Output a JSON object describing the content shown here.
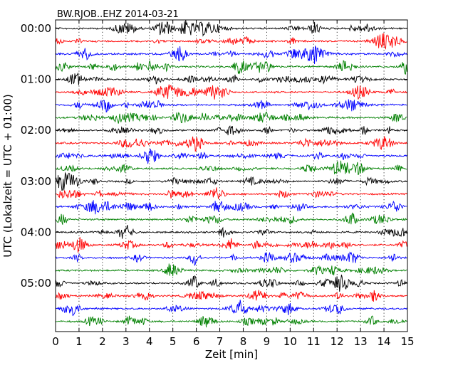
{
  "chart_data": {
    "type": "line",
    "title": "BW.RJOB..EHZ 2014-03-21",
    "xlabel": "Zeit  [min]",
    "ylabel": "UTC (Lokalzeit = UTC + 01:00)",
    "xlim": [
      0,
      15
    ],
    "x_ticks": [
      "0",
      "1",
      "2",
      "3",
      "4",
      "5",
      "6",
      "7",
      "8",
      "9",
      "10",
      "11",
      "12",
      "13",
      "14",
      "15"
    ],
    "y_ticks": [
      "00:00",
      "01:00",
      "02:00",
      "03:00",
      "04:00",
      "05:00"
    ],
    "trace_interval_min": 15,
    "trace_count": 24,
    "grid": "vertical dotted at each minute",
    "colors": [
      "#000000",
      "#ff0000",
      "#0000ff",
      "#008000"
    ]
  }
}
